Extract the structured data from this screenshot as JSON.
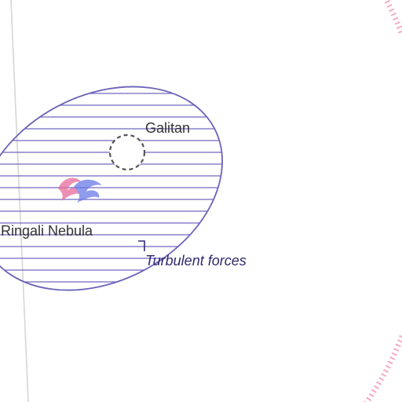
{
  "map": {
    "labels": {
      "nebula": "Ringali Nebula",
      "system": "Galitan",
      "note": "Turbulent forces"
    },
    "colors": {
      "background": "#ffffff",
      "nebula_outline": "#6b62b8",
      "hatch": "#7067c0",
      "system_marker": "#555555",
      "label_text": "#333333",
      "note_text": "#2e2a6e",
      "leader_line": "#2e2a6e",
      "left_boundary": "#d6d6d6",
      "right_boundary": "#f4a0c0",
      "swirl_pink": "#e86a9a",
      "swirl_blue": "#6a7ae8"
    },
    "icons": {
      "system_marker": "dashed-circle-icon",
      "anomaly": "swirl-icon"
    }
  }
}
